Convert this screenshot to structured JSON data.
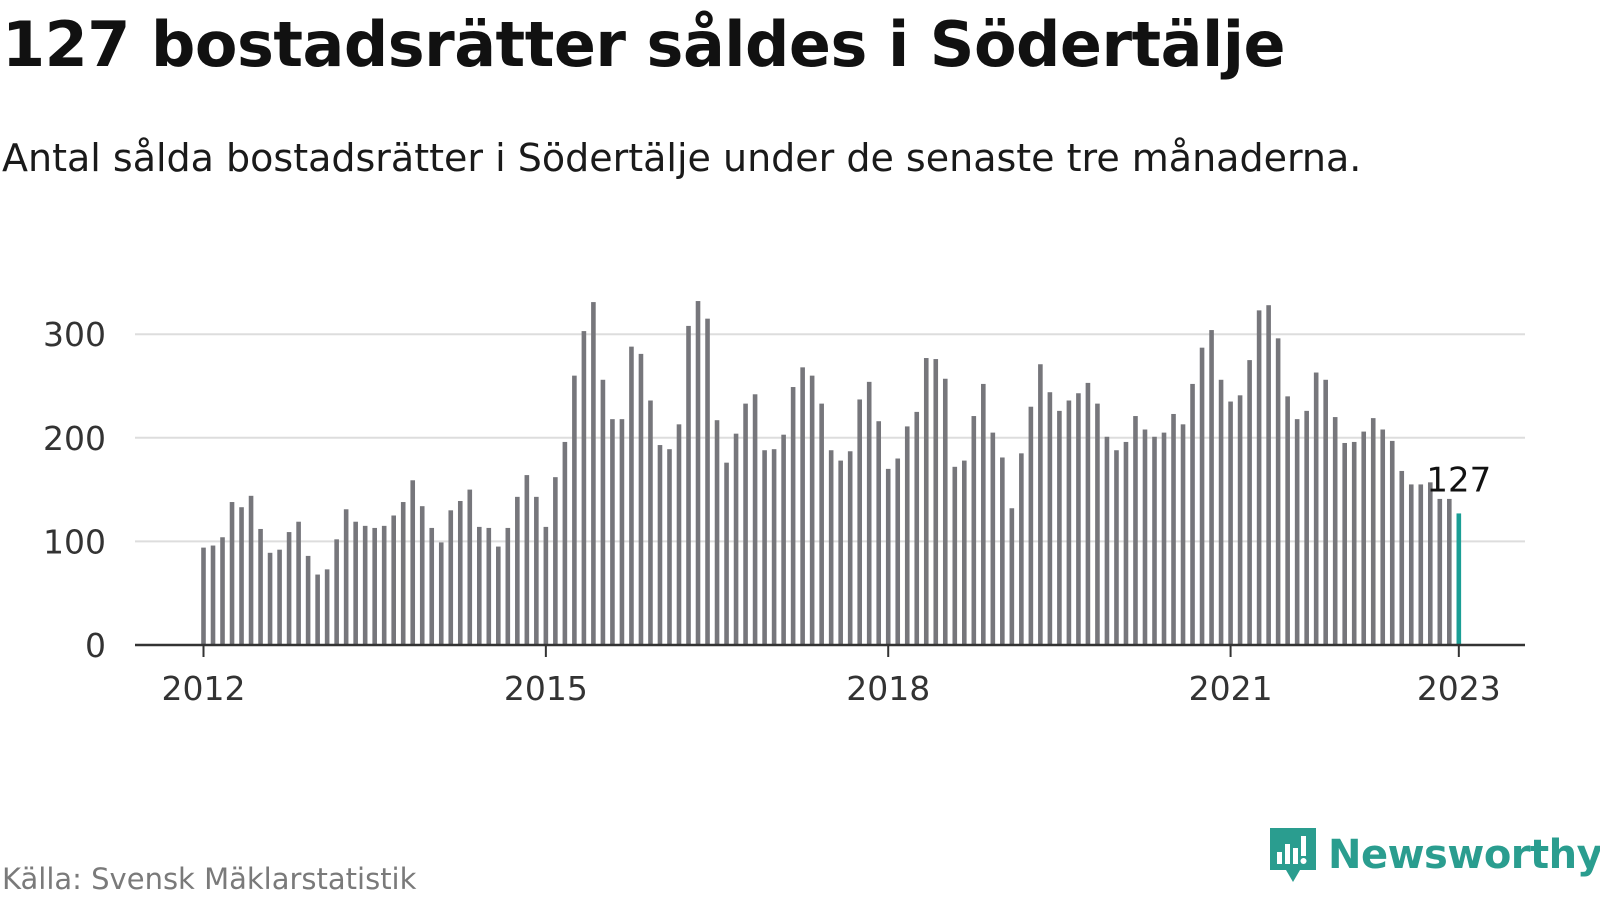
{
  "header": {
    "title": "127 bostadsrätter såldes i Södertälje",
    "subtitle": "Antal sålda bostadsrätter i Södertälje under de senaste tre månaderna."
  },
  "footer": {
    "source": "Källa: Svensk Mäklarstatistik",
    "brand": "Newsworthy"
  },
  "colors": {
    "bar": "#76767b",
    "highlight": "#1a9e95",
    "grid": "#dddddd",
    "axis": "#333333",
    "brand": "#2a9d8f"
  },
  "icons": {
    "brand": "newsworthy-logo-icon"
  },
  "chart_data": {
    "type": "bar",
    "start": "2012-01",
    "values": [
      94,
      96,
      104,
      138,
      133,
      144,
      112,
      89,
      92,
      109,
      119,
      86,
      68,
      73,
      102,
      131,
      119,
      115,
      113,
      115,
      125,
      138,
      159,
      134,
      113,
      99,
      130,
      139,
      150,
      114,
      113,
      95,
      113,
      143,
      164,
      143,
      114,
      162,
      196,
      260,
      303,
      331,
      256,
      218,
      218,
      288,
      281,
      236,
      193,
      189,
      213,
      308,
      332,
      315,
      217,
      176,
      204,
      233,
      242,
      188,
      189,
      203,
      249,
      268,
      260,
      233,
      188,
      178,
      187,
      237,
      254,
      216,
      170,
      180,
      211,
      225,
      277,
      276,
      257,
      172,
      178,
      221,
      252,
      205,
      181,
      132,
      185,
      230,
      271,
      244,
      226,
      236,
      243,
      253,
      233,
      201,
      188,
      196,
      221,
      208,
      201,
      205,
      223,
      213,
      252,
      287,
      304,
      256,
      235,
      241,
      275,
      323,
      328,
      296,
      240,
      218,
      226,
      263,
      256,
      220,
      195,
      196,
      206,
      219,
      208,
      197,
      168,
      155,
      155,
      157,
      141,
      141,
      127
    ],
    "highlight_label": "127",
    "x_ticks": [
      "2012",
      "2015",
      "2018",
      "2021",
      "2023"
    ],
    "y_ticks": [
      "0",
      "100",
      "200",
      "300"
    ],
    "ylim": [
      0,
      350
    ],
    "grid": true,
    "legend": "none"
  }
}
